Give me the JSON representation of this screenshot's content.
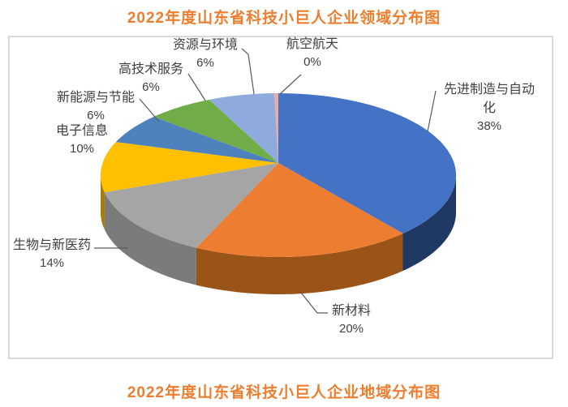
{
  "page": {
    "title_top": "2022年度山东省科技小巨人企业领域分布图",
    "title_bottom": "2022年度山东省科技小巨人企业地域分布图",
    "title_color": "#EF7D2E",
    "frame_border_color": "#D9D9D9",
    "label_text_color": "#3F3F3F",
    "leader_line_color": "#5A5A5A"
  },
  "chart_data": {
    "type": "pie",
    "style": "3d",
    "title": "2022年度山东省科技小巨人企业领域分布图",
    "direction": "clockwise",
    "start_angle_deg": 0,
    "legend": "none",
    "labels_outside_with_leader_lines": true,
    "slices": [
      {
        "label": "先进制造与自动化",
        "value": 38,
        "pct_label": "38%",
        "color": "#4472C4",
        "side_color": "#1F3864"
      },
      {
        "label": "新材料",
        "value": 20,
        "pct_label": "20%",
        "color": "#ED7D31",
        "side_color": "#9A5418"
      },
      {
        "label": "生物与新医药",
        "value": 14,
        "pct_label": "14%",
        "color": "#A5A5A5",
        "side_color": "#7B7B7B"
      },
      {
        "label": "电子信息",
        "value": 10,
        "pct_label": "10%",
        "color": "#FFC000",
        "side_color": "#A77C00"
      },
      {
        "label": "新能源与节能",
        "value": 6,
        "pct_label": "6%",
        "color": "#4E82BC",
        "side_color": "#2F5A8C"
      },
      {
        "label": "高技术服务",
        "value": 6,
        "pct_label": "6%",
        "color": "#70AD47",
        "side_color": "#4C7A2E"
      },
      {
        "label": "资源与环境",
        "value": 6,
        "pct_label": "6%",
        "color": "#8FAADC",
        "side_color": "#5F7BB0"
      },
      {
        "label": "航空航天",
        "value": 0,
        "pct_label": "0%",
        "color": "#ECACA2",
        "side_color": "#C27B6E"
      }
    ]
  }
}
